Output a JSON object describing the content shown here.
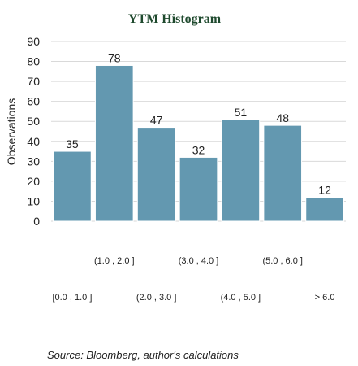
{
  "chart_data": {
    "type": "bar",
    "title": "YTM Histogram",
    "ylabel": "Observations",
    "xlabel": "",
    "categories": [
      "[0.0 , 1.0 ]",
      "(1.0 , 2.0 ]",
      "(2.0 , 3.0 ]",
      "(3.0 , 4.0 ]",
      "(4.0 , 5.0 ]",
      "(5.0 , 6.0 ]",
      "> 6.0"
    ],
    "values": [
      35,
      78,
      47,
      32,
      51,
      48,
      12
    ],
    "ylim": [
      0,
      90
    ],
    "yticks": [
      0,
      10,
      20,
      30,
      40,
      50,
      60,
      70,
      80,
      90
    ],
    "grid": true,
    "colors": {
      "bar": "#6398b0",
      "grid": "#d9d9d9",
      "title": "#1f4a2e"
    }
  },
  "source": "Source: Bloomberg, author's calculations"
}
